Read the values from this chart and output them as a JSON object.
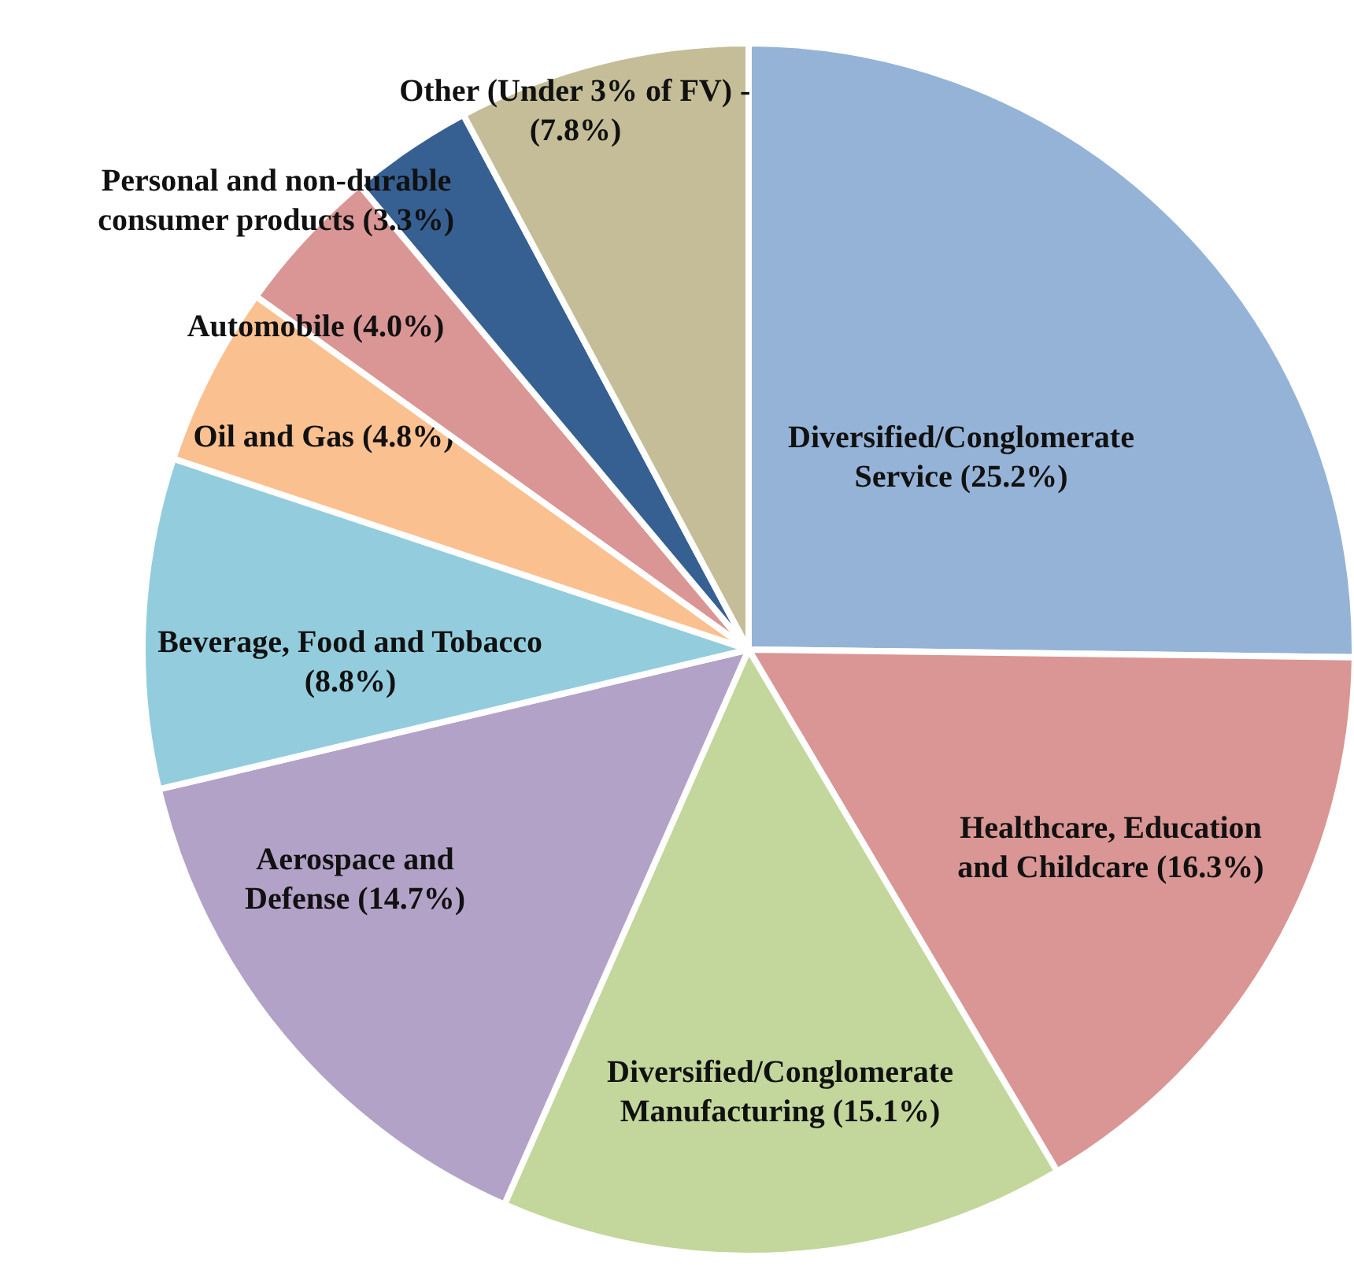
{
  "chart_data": {
    "type": "pie",
    "categories": [
      "Diversified/Conglomerate\nService",
      "Healthcare, Education\nand Childcare",
      "Diversified/Conglomerate\nManufacturing",
      "Aerospace and\nDefense",
      "Beverage, Food and Tobacco\n",
      "Oil and Gas",
      "Automobile",
      "Personal and non-durable\nconsumer products",
      "Other (Under 3% of FV) -\n"
    ],
    "values": [
      25.2,
      16.3,
      15.1,
      14.7,
      8.8,
      4.8,
      4.0,
      3.3,
      7.8
    ],
    "colors": [
      "#95b3d7",
      "#d99694",
      "#c3d69b",
      "#b3a2c7",
      "#93cddd",
      "#fac090",
      "#d99694",
      "#376092",
      "#c4bd97"
    ],
    "value_labels": [
      "(25.2%)",
      "(16.3%)",
      "(15.1%)",
      "(14.7%)",
      "(8.8%)",
      "(4.8%)",
      "(4.0%)",
      "(3.3%)",
      "(7.8%)"
    ]
  }
}
